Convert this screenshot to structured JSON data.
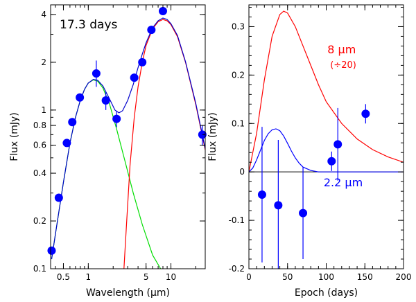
{
  "chart_data": [
    {
      "type": "scatter",
      "panel": "left",
      "title": "",
      "annotation": "17.3 days",
      "xlabel": "Wavelength (µm)",
      "ylabel": "Flux (mJy)",
      "xscale": "log",
      "yscale": "log",
      "xlim": [
        0.35,
        26
      ],
      "ylim": [
        0.1,
        4.6
      ],
      "x_ticks": [
        {
          "value": 0.5,
          "label": "0.5"
        },
        {
          "value": 1,
          "label": "1"
        },
        {
          "value": 5,
          "label": "5"
        },
        {
          "value": 10,
          "label": "10"
        }
      ],
      "y_ticks": [
        {
          "value": 0.1,
          "label": "0.1"
        },
        {
          "value": 0.2,
          "label": "0.2"
        },
        {
          "value": 0.4,
          "label": "0.4"
        },
        {
          "value": 0.6,
          "label": "0.6"
        },
        {
          "value": 0.8,
          "label": "0.8"
        },
        {
          "value": 1,
          "label": "1"
        },
        {
          "value": 2,
          "label": "2"
        },
        {
          "value": 4,
          "label": "4"
        }
      ],
      "points": [
        {
          "x": 0.36,
          "y": 0.13
        },
        {
          "x": 0.44,
          "y": 0.28
        },
        {
          "x": 0.55,
          "y": 0.62
        },
        {
          "x": 0.64,
          "y": 0.84
        },
        {
          "x": 0.79,
          "y": 1.2
        },
        {
          "x": 1.25,
          "y": 1.7,
          "err": [
            0.3,
            0.35
          ]
        },
        {
          "x": 1.63,
          "y": 1.15,
          "err": [
            0.15,
            0.15
          ]
        },
        {
          "x": 2.2,
          "y": 0.88,
          "err": [
            0.1,
            0.1
          ]
        },
        {
          "x": 3.6,
          "y": 1.6
        },
        {
          "x": 4.5,
          "y": 2.0
        },
        {
          "x": 5.8,
          "y": 3.2
        },
        {
          "x": 8.0,
          "y": 4.2
        },
        {
          "x": 24.0,
          "y": 0.7,
          "err": [
            0.1,
            0.1
          ]
        }
      ],
      "point_color": "#0000ff",
      "curves": [
        {
          "color": "#00dd00",
          "points": [
            [
              0.36,
              0.115
            ],
            [
              0.4,
              0.165
            ],
            [
              0.5,
              0.35
            ],
            [
              0.6,
              0.62
            ],
            [
              0.7,
              0.9
            ],
            [
              0.8,
              1.15
            ],
            [
              0.9,
              1.35
            ],
            [
              1.0,
              1.48
            ],
            [
              1.15,
              1.55
            ],
            [
              1.3,
              1.52
            ],
            [
              1.5,
              1.38
            ],
            [
              1.8,
              1.1
            ],
            [
              2.2,
              0.76
            ],
            [
              2.8,
              0.47
            ],
            [
              3.5,
              0.3
            ],
            [
              4.5,
              0.19
            ],
            [
              6.0,
              0.122
            ],
            [
              7.5,
              0.1
            ]
          ]
        },
        {
          "color": "#ff0000",
          "points": [
            [
              2.7,
              0.1
            ],
            [
              2.9,
              0.19
            ],
            [
              3.2,
              0.45
            ],
            [
              3.6,
              0.9
            ],
            [
              4.0,
              1.4
            ],
            [
              4.5,
              2.0
            ],
            [
              5.0,
              2.55
            ],
            [
              6.0,
              3.25
            ],
            [
              7.0,
              3.6
            ],
            [
              8.0,
              3.72
            ],
            [
              9.0,
              3.65
            ],
            [
              10.0,
              3.45
            ],
            [
              12.0,
              2.9
            ],
            [
              15.0,
              2.0
            ],
            [
              20.0,
              1.08
            ],
            [
              26.0,
              0.56
            ]
          ]
        },
        {
          "color": "#0000cc",
          "points": [
            [
              0.36,
              0.115
            ],
            [
              0.4,
              0.165
            ],
            [
              0.5,
              0.35
            ],
            [
              0.6,
              0.62
            ],
            [
              0.7,
              0.9
            ],
            [
              0.8,
              1.15
            ],
            [
              0.9,
              1.35
            ],
            [
              1.0,
              1.48
            ],
            [
              1.15,
              1.56
            ],
            [
              1.3,
              1.54
            ],
            [
              1.5,
              1.42
            ],
            [
              1.8,
              1.18
            ],
            [
              2.1,
              1.0
            ],
            [
              2.35,
              0.96
            ],
            [
              2.6,
              0.99
            ],
            [
              3.0,
              1.15
            ],
            [
              3.5,
              1.45
            ],
            [
              4.0,
              1.85
            ],
            [
              4.5,
              2.25
            ],
            [
              5.0,
              2.65
            ],
            [
              6.0,
              3.3
            ],
            [
              7.0,
              3.65
            ],
            [
              8.0,
              3.8
            ],
            [
              9.0,
              3.72
            ],
            [
              10.0,
              3.5
            ],
            [
              12.0,
              2.95
            ],
            [
              15.0,
              2.02
            ],
            [
              20.0,
              1.1
            ],
            [
              26.0,
              0.57
            ]
          ]
        }
      ]
    },
    {
      "type": "scatter",
      "panel": "right",
      "title": "",
      "xlabel": "Epoch (days)",
      "ylabel": "Flux (mJy)",
      "xlim": [
        0,
        200
      ],
      "ylim": [
        -0.2,
        0.345
      ],
      "x_ticks": [
        {
          "value": 0,
          "label": "0"
        },
        {
          "value": 50,
          "label": "50"
        },
        {
          "value": 100,
          "label": "100"
        },
        {
          "value": 150,
          "label": "150"
        },
        {
          "value": 200,
          "label": "200"
        }
      ],
      "y_ticks": [
        {
          "value": -0.2,
          "label": "-0.2"
        },
        {
          "value": -0.1,
          "label": "-0.1"
        },
        {
          "value": 0,
          "label": "0"
        },
        {
          "value": 0.1,
          "label": "0.1"
        },
        {
          "value": 0.2,
          "label": "0.2"
        },
        {
          "value": 0.3,
          "label": "0.3"
        }
      ],
      "zero_line": true,
      "labels": [
        {
          "text": "8 μm",
          "color": "#ff0000",
          "x": 120,
          "y": 0.245,
          "size": 16
        },
        {
          "text": "(÷20)",
          "color": "#ff0000",
          "x": 122,
          "y": 0.215,
          "size": 13
        },
        {
          "text": "2.2 μm",
          "color": "#0000ff",
          "x": 122,
          "y": -0.03,
          "size": 16
        }
      ],
      "points": [
        {
          "x": 17,
          "y": -0.047,
          "err": [
            0.14,
            0.14
          ]
        },
        {
          "x": 38,
          "y": -0.069,
          "err": [
            0.135,
            0.135
          ]
        },
        {
          "x": 70,
          "y": -0.085,
          "err": [
            0.095,
            0.095
          ]
        },
        {
          "x": 107,
          "y": 0.022,
          "err": [
            0.02,
            0.02
          ]
        },
        {
          "x": 115,
          "y": 0.057,
          "err": [
            0.075,
            0.075
          ]
        },
        {
          "x": 151,
          "y": 0.12,
          "err": [
            0.02,
            0.02
          ]
        }
      ],
      "point_color": "#0000ff",
      "curves": [
        {
          "color": "#ff0000",
          "points": [
            [
              0,
              0.0
            ],
            [
              10,
              0.08
            ],
            [
              20,
              0.19
            ],
            [
              30,
              0.28
            ],
            [
              40,
              0.325
            ],
            [
              45,
              0.332
            ],
            [
              50,
              0.328
            ],
            [
              60,
              0.3
            ],
            [
              70,
              0.26
            ],
            [
              80,
              0.22
            ],
            [
              90,
              0.18
            ],
            [
              100,
              0.145
            ],
            [
              120,
              0.1
            ],
            [
              140,
              0.068
            ],
            [
              160,
              0.046
            ],
            [
              180,
              0.031
            ],
            [
              200,
              0.02
            ]
          ]
        },
        {
          "color": "#0000ff",
          "points": [
            [
              0,
              0.0
            ],
            [
              5,
              0.008
            ],
            [
              10,
              0.025
            ],
            [
              15,
              0.045
            ],
            [
              20,
              0.065
            ],
            [
              25,
              0.079
            ],
            [
              30,
              0.087
            ],
            [
              35,
              0.089
            ],
            [
              40,
              0.085
            ],
            [
              45,
              0.074
            ],
            [
              50,
              0.059
            ],
            [
              55,
              0.043
            ],
            [
              60,
              0.029
            ],
            [
              65,
              0.018
            ],
            [
              70,
              0.01
            ],
            [
              80,
              0.003
            ],
            [
              90,
              0.0
            ],
            [
              200,
              0.0
            ]
          ]
        }
      ]
    }
  ]
}
